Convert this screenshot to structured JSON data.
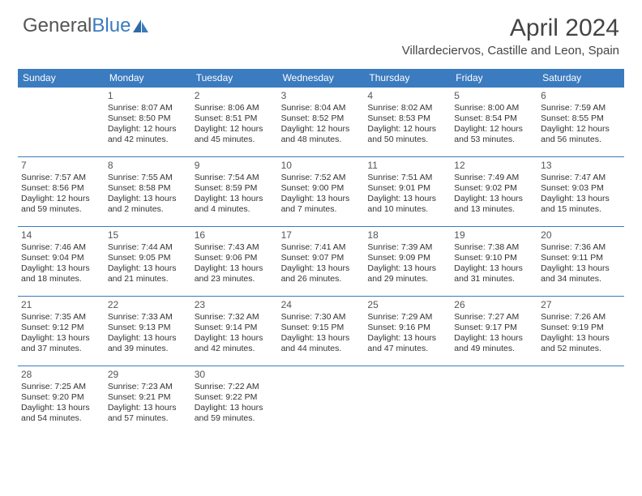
{
  "brand": {
    "part1": "General",
    "part2": "Blue"
  },
  "title": "April 2024",
  "location": "Villardeciervos, Castille and Leon, Spain",
  "colors": {
    "header_bg": "#3b7bbf",
    "header_text": "#ffffff",
    "page_bg": "#ffffff",
    "text": "#333333",
    "rule": "#3b7bbf"
  },
  "weekdays": [
    "Sunday",
    "Monday",
    "Tuesday",
    "Wednesday",
    "Thursday",
    "Friday",
    "Saturday"
  ],
  "start_offset": 1,
  "days": [
    {
      "n": 1,
      "sr": "8:07 AM",
      "ss": "8:50 PM",
      "dl1": "12 hours",
      "dl2": "and 42 minutes."
    },
    {
      "n": 2,
      "sr": "8:06 AM",
      "ss": "8:51 PM",
      "dl1": "12 hours",
      "dl2": "and 45 minutes."
    },
    {
      "n": 3,
      "sr": "8:04 AM",
      "ss": "8:52 PM",
      "dl1": "12 hours",
      "dl2": "and 48 minutes."
    },
    {
      "n": 4,
      "sr": "8:02 AM",
      "ss": "8:53 PM",
      "dl1": "12 hours",
      "dl2": "and 50 minutes."
    },
    {
      "n": 5,
      "sr": "8:00 AM",
      "ss": "8:54 PM",
      "dl1": "12 hours",
      "dl2": "and 53 minutes."
    },
    {
      "n": 6,
      "sr": "7:59 AM",
      "ss": "8:55 PM",
      "dl1": "12 hours",
      "dl2": "and 56 minutes."
    },
    {
      "n": 7,
      "sr": "7:57 AM",
      "ss": "8:56 PM",
      "dl1": "12 hours",
      "dl2": "and 59 minutes."
    },
    {
      "n": 8,
      "sr": "7:55 AM",
      "ss": "8:58 PM",
      "dl1": "13 hours",
      "dl2": "and 2 minutes."
    },
    {
      "n": 9,
      "sr": "7:54 AM",
      "ss": "8:59 PM",
      "dl1": "13 hours",
      "dl2": "and 4 minutes."
    },
    {
      "n": 10,
      "sr": "7:52 AM",
      "ss": "9:00 PM",
      "dl1": "13 hours",
      "dl2": "and 7 minutes."
    },
    {
      "n": 11,
      "sr": "7:51 AM",
      "ss": "9:01 PM",
      "dl1": "13 hours",
      "dl2": "and 10 minutes."
    },
    {
      "n": 12,
      "sr": "7:49 AM",
      "ss": "9:02 PM",
      "dl1": "13 hours",
      "dl2": "and 13 minutes."
    },
    {
      "n": 13,
      "sr": "7:47 AM",
      "ss": "9:03 PM",
      "dl1": "13 hours",
      "dl2": "and 15 minutes."
    },
    {
      "n": 14,
      "sr": "7:46 AM",
      "ss": "9:04 PM",
      "dl1": "13 hours",
      "dl2": "and 18 minutes."
    },
    {
      "n": 15,
      "sr": "7:44 AM",
      "ss": "9:05 PM",
      "dl1": "13 hours",
      "dl2": "and 21 minutes."
    },
    {
      "n": 16,
      "sr": "7:43 AM",
      "ss": "9:06 PM",
      "dl1": "13 hours",
      "dl2": "and 23 minutes."
    },
    {
      "n": 17,
      "sr": "7:41 AM",
      "ss": "9:07 PM",
      "dl1": "13 hours",
      "dl2": "and 26 minutes."
    },
    {
      "n": 18,
      "sr": "7:39 AM",
      "ss": "9:09 PM",
      "dl1": "13 hours",
      "dl2": "and 29 minutes."
    },
    {
      "n": 19,
      "sr": "7:38 AM",
      "ss": "9:10 PM",
      "dl1": "13 hours",
      "dl2": "and 31 minutes."
    },
    {
      "n": 20,
      "sr": "7:36 AM",
      "ss": "9:11 PM",
      "dl1": "13 hours",
      "dl2": "and 34 minutes."
    },
    {
      "n": 21,
      "sr": "7:35 AM",
      "ss": "9:12 PM",
      "dl1": "13 hours",
      "dl2": "and 37 minutes."
    },
    {
      "n": 22,
      "sr": "7:33 AM",
      "ss": "9:13 PM",
      "dl1": "13 hours",
      "dl2": "and 39 minutes."
    },
    {
      "n": 23,
      "sr": "7:32 AM",
      "ss": "9:14 PM",
      "dl1": "13 hours",
      "dl2": "and 42 minutes."
    },
    {
      "n": 24,
      "sr": "7:30 AM",
      "ss": "9:15 PM",
      "dl1": "13 hours",
      "dl2": "and 44 minutes."
    },
    {
      "n": 25,
      "sr": "7:29 AM",
      "ss": "9:16 PM",
      "dl1": "13 hours",
      "dl2": "and 47 minutes."
    },
    {
      "n": 26,
      "sr": "7:27 AM",
      "ss": "9:17 PM",
      "dl1": "13 hours",
      "dl2": "and 49 minutes."
    },
    {
      "n": 27,
      "sr": "7:26 AM",
      "ss": "9:19 PM",
      "dl1": "13 hours",
      "dl2": "and 52 minutes."
    },
    {
      "n": 28,
      "sr": "7:25 AM",
      "ss": "9:20 PM",
      "dl1": "13 hours",
      "dl2": "and 54 minutes."
    },
    {
      "n": 29,
      "sr": "7:23 AM",
      "ss": "9:21 PM",
      "dl1": "13 hours",
      "dl2": "and 57 minutes."
    },
    {
      "n": 30,
      "sr": "7:22 AM",
      "ss": "9:22 PM",
      "dl1": "13 hours",
      "dl2": "and 59 minutes."
    }
  ],
  "labels": {
    "sunrise": "Sunrise:",
    "sunset": "Sunset:",
    "daylight": "Daylight:"
  }
}
